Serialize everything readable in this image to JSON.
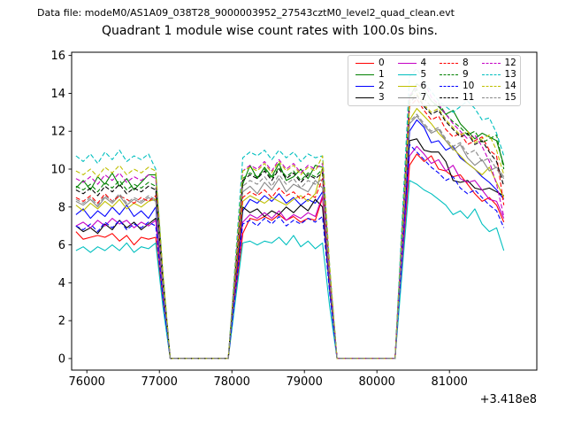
{
  "header": {
    "text": "Data file: modeM0/AS1A09_038T28_9000003952_27543cztM0_level2_quad_clean.evt"
  },
  "chart_data": {
    "type": "line",
    "title": "Quadrant 1 module wise count rates with 100.0s bins.",
    "xlabel": "",
    "ylabel": "",
    "x_offset_label": "+3.418e8",
    "grid": false,
    "legend_position": "upper right",
    "xlim": [
      75790,
      82205
    ],
    "ylim": [
      -0.61,
      16.17
    ],
    "x_ticks": [
      76000,
      77000,
      78000,
      79000,
      80000,
      81000
    ],
    "y_ticks": [
      0,
      2,
      4,
      6,
      8,
      10,
      12,
      14,
      16
    ],
    "x": [
      75850,
      75950,
      76050,
      76150,
      76250,
      76350,
      76450,
      76550,
      76650,
      76750,
      76850,
      76950,
      77050,
      77150,
      77250,
      77350,
      77450,
      77550,
      77650,
      77750,
      77850,
      77950,
      78050,
      78150,
      78250,
      78350,
      78450,
      78550,
      78650,
      78750,
      78850,
      78950,
      79050,
      79150,
      79250,
      79350,
      79450,
      79550,
      79650,
      79750,
      79850,
      79950,
      80050,
      80150,
      80250,
      80350,
      80450,
      80550,
      80650,
      80750,
      80850,
      80950,
      81050,
      81150,
      81250,
      81350,
      81450,
      81550,
      81650,
      81750
    ],
    "series": [
      {
        "name": "0",
        "color": "#ff0000",
        "style": "solid",
        "values": [
          6.7,
          6.3,
          6.4,
          6.5,
          6.4,
          6.6,
          6.2,
          6.5,
          6.0,
          6.4,
          6.3,
          6.4,
          2.9,
          0,
          0,
          0,
          0,
          0,
          0,
          0,
          0,
          0,
          3.3,
          6.6,
          7.4,
          7.3,
          7.5,
          7.3,
          7.6,
          7.3,
          7.5,
          7.2,
          7.4,
          7.3,
          8.5,
          3.8,
          0,
          0,
          0,
          0,
          0,
          0,
          0,
          0,
          0,
          5.1,
          10.2,
          10.8,
          10.4,
          10.7,
          10.0,
          9.9,
          9.6,
          9.7,
          9.2,
          8.7,
          8.3,
          8.5,
          8.1,
          7.2
        ]
      },
      {
        "name": "1",
        "color": "#008000",
        "style": "solid",
        "values": [
          9.0,
          9.4,
          8.9,
          9.6,
          9.2,
          9.8,
          9.1,
          9.5,
          8.9,
          9.3,
          9.7,
          9.7,
          4.4,
          0,
          0,
          0,
          0,
          0,
          0,
          0,
          0,
          0,
          4.6,
          9.2,
          10.2,
          9.5,
          10.1,
          9.6,
          10.3,
          9.4,
          9.6,
          10.0,
          9.5,
          10.2,
          10.1,
          4.5,
          0,
          0,
          0,
          0,
          0,
          0,
          0,
          0,
          0,
          6.9,
          13.8,
          14.5,
          14.2,
          13.6,
          13.3,
          12.9,
          13.1,
          12.4,
          12.0,
          11.6,
          11.9,
          11.7,
          11.5,
          10.2
        ]
      },
      {
        "name": "2",
        "color": "#0000ff",
        "style": "solid",
        "values": [
          7.6,
          7.9,
          7.4,
          7.8,
          7.5,
          8.0,
          7.6,
          8.1,
          7.5,
          7.8,
          7.4,
          8.0,
          3.6,
          0,
          0,
          0,
          0,
          0,
          0,
          0,
          0,
          0,
          3.9,
          7.8,
          8.4,
          8.2,
          8.6,
          8.3,
          8.7,
          8.2,
          8.5,
          8.1,
          8.4,
          8.2,
          8.8,
          4.0,
          0,
          0,
          0,
          0,
          0,
          0,
          0,
          0,
          0,
          6.0,
          12.0,
          12.6,
          12.2,
          11.4,
          11.5,
          11.0,
          11.2,
          10.6,
          10.3,
          10.0,
          9.6,
          9.3,
          8.9,
          8.4
        ]
      },
      {
        "name": "3",
        "color": "#000000",
        "style": "solid",
        "values": [
          7.0,
          6.7,
          6.9,
          6.6,
          7.1,
          6.8,
          7.3,
          6.9,
          7.2,
          6.8,
          7.1,
          7.4,
          3.3,
          0,
          0,
          0,
          0,
          0,
          0,
          0,
          0,
          0,
          4.0,
          8.0,
          7.7,
          7.9,
          7.5,
          7.8,
          7.6,
          8.0,
          7.7,
          8.1,
          7.8,
          8.4,
          8.0,
          3.6,
          0,
          0,
          0,
          0,
          0,
          0,
          0,
          0,
          0,
          5.8,
          11.5,
          11.6,
          11.0,
          10.9,
          10.9,
          10.4,
          9.4,
          9.3,
          9.4,
          9.0,
          8.9,
          9.0,
          8.8,
          8.6
        ]
      },
      {
        "name": "4",
        "color": "#c400c4",
        "style": "solid",
        "values": [
          7.0,
          7.2,
          6.9,
          7.3,
          7.0,
          7.4,
          7.1,
          7.3,
          6.9,
          7.2,
          7.0,
          7.3,
          3.3,
          0,
          0,
          0,
          0,
          0,
          0,
          0,
          0,
          0,
          3.6,
          7.2,
          7.6,
          7.4,
          7.7,
          7.4,
          7.8,
          7.3,
          7.6,
          7.4,
          7.7,
          7.5,
          8.6,
          3.9,
          0,
          0,
          0,
          0,
          0,
          0,
          0,
          0,
          0,
          5.4,
          10.7,
          11.2,
          10.8,
          10.3,
          10.5,
          9.9,
          10.2,
          9.5,
          9.3,
          9.4,
          8.9,
          8.4,
          8.3,
          7.4
        ]
      },
      {
        "name": "5",
        "color": "#00bfbf",
        "style": "solid",
        "values": [
          5.7,
          5.9,
          5.6,
          5.9,
          5.7,
          6.0,
          5.7,
          6.1,
          5.6,
          5.9,
          5.8,
          6.1,
          2.7,
          0,
          0,
          0,
          0,
          0,
          0,
          0,
          0,
          0,
          3.1,
          6.1,
          6.2,
          6.0,
          6.2,
          6.1,
          6.4,
          6.0,
          6.5,
          5.9,
          6.2,
          5.8,
          6.1,
          2.7,
          0,
          0,
          0,
          0,
          0,
          0,
          0,
          0,
          0,
          4.7,
          9.4,
          9.2,
          8.9,
          8.7,
          8.4,
          8.1,
          7.6,
          7.8,
          7.4,
          7.9,
          7.1,
          6.7,
          6.9,
          5.7
        ]
      },
      {
        "name": "6",
        "color": "#bfbf00",
        "style": "solid",
        "values": [
          8.1,
          7.8,
          8.2,
          7.9,
          8.3,
          8.0,
          8.4,
          7.9,
          8.2,
          8.0,
          8.3,
          8.4,
          3.8,
          0,
          0,
          0,
          0,
          0,
          0,
          0,
          0,
          0,
          4.2,
          8.3,
          8.6,
          8.4,
          8.2,
          8.5,
          8.3,
          8.1,
          8.4,
          8.6,
          8.3,
          8.7,
          10.1,
          4.5,
          0,
          0,
          0,
          0,
          0,
          0,
          0,
          0,
          0,
          6.3,
          12.6,
          13.2,
          12.8,
          12.4,
          11.9,
          11.5,
          11.1,
          10.7,
          10.3,
          10.0,
          9.7,
          10.1,
          9.3,
          8.5
        ]
      },
      {
        "name": "7",
        "color": "#888888",
        "style": "solid",
        "values": [
          8.3,
          8.1,
          8.4,
          8.0,
          8.5,
          8.2,
          8.6,
          8.1,
          8.4,
          8.2,
          8.5,
          8.3,
          3.7,
          0,
          0,
          0,
          0,
          0,
          0,
          0,
          0,
          0,
          4.4,
          8.8,
          9.1,
          8.7,
          9.3,
          8.9,
          9.5,
          8.8,
          9.2,
          9.0,
          8.8,
          9.4,
          9.0,
          4.1,
          0,
          0,
          0,
          0,
          0,
          0,
          0,
          0,
          0,
          6.2,
          12.4,
          12.8,
          12.3,
          11.9,
          12.1,
          11.5,
          11.0,
          11.3,
          10.6,
          10.2,
          10.5,
          9.9,
          10.1,
          9.6
        ]
      },
      {
        "name": "8",
        "color": "#ff0000",
        "style": "dashed",
        "values": [
          8.5,
          8.3,
          8.6,
          8.2,
          8.7,
          8.3,
          8.6,
          8.4,
          8.2,
          8.5,
          8.3,
          8.6,
          3.9,
          0,
          0,
          0,
          0,
          0,
          0,
          0,
          0,
          0,
          4.3,
          8.5,
          8.8,
          8.6,
          8.9,
          8.5,
          9.0,
          8.6,
          8.8,
          8.4,
          8.7,
          8.5,
          9.5,
          4.3,
          0,
          0,
          0,
          0,
          0,
          0,
          0,
          0,
          0,
          6.7,
          13.3,
          13.7,
          13.1,
          12.6,
          12.8,
          12.1,
          11.7,
          11.9,
          11.3,
          11.5,
          11.7,
          11.0,
          10.7,
          8.1
        ]
      },
      {
        "name": "9",
        "color": "#008000",
        "style": "dashed",
        "values": [
          9.1,
          8.9,
          9.2,
          8.8,
          9.3,
          9.0,
          9.4,
          8.9,
          9.2,
          9.0,
          9.3,
          9.1,
          4.1,
          0,
          0,
          0,
          0,
          0,
          0,
          0,
          0,
          0,
          4.8,
          9.5,
          9.8,
          9.6,
          10.0,
          9.5,
          10.1,
          9.6,
          9.9,
          9.4,
          9.8,
          9.6,
          10.0,
          4.5,
          0,
          0,
          0,
          0,
          0,
          0,
          0,
          0,
          0,
          6.9,
          13.8,
          14.2,
          13.7,
          13.3,
          13.5,
          12.9,
          12.5,
          12.2,
          11.8,
          12.0,
          11.4,
          11.6,
          11.8,
          10.0
        ]
      },
      {
        "name": "10",
        "color": "#0000ff",
        "style": "dashed",
        "values": [
          7.0,
          6.8,
          7.1,
          6.7,
          7.2,
          6.9,
          7.3,
          6.8,
          7.1,
          6.9,
          7.2,
          7.0,
          3.2,
          0,
          0,
          0,
          0,
          0,
          0,
          0,
          0,
          0,
          3.6,
          7.1,
          7.3,
          7.0,
          7.4,
          7.1,
          7.5,
          7.0,
          7.3,
          7.1,
          7.4,
          7.2,
          7.5,
          3.4,
          0,
          0,
          0,
          0,
          0,
          0,
          0,
          0,
          0,
          5.7,
          11.3,
          10.9,
          10.5,
          10.1,
          9.8,
          9.4,
          9.6,
          9.0,
          8.7,
          8.9,
          8.5,
          8.1,
          7.8,
          6.9
        ]
      },
      {
        "name": "11",
        "color": "#000000",
        "style": "dashed",
        "values": [
          8.9,
          8.7,
          9.0,
          8.6,
          9.1,
          8.8,
          9.2,
          8.7,
          9.0,
          8.8,
          9.1,
          8.9,
          4.0,
          0,
          0,
          0,
          0,
          0,
          0,
          0,
          0,
          0,
          4.7,
          9.4,
          9.7,
          9.5,
          9.9,
          9.4,
          10.0,
          9.5,
          9.8,
          9.3,
          9.7,
          9.5,
          9.8,
          4.4,
          0,
          0,
          0,
          0,
          0,
          0,
          0,
          0,
          0,
          6.8,
          13.5,
          13.9,
          13.3,
          12.9,
          13.1,
          12.5,
          12.1,
          11.7,
          11.9,
          11.3,
          11.5,
          10.9,
          10.4,
          9.1
        ]
      },
      {
        "name": "12",
        "color": "#c400c4",
        "style": "dashed",
        "values": [
          9.5,
          9.3,
          9.6,
          9.2,
          9.7,
          9.4,
          9.8,
          9.3,
          9.6,
          9.4,
          9.7,
          9.5,
          4.3,
          0,
          0,
          0,
          0,
          0,
          0,
          0,
          0,
          0,
          5.0,
          9.9,
          10.2,
          10.0,
          10.4,
          9.9,
          10.5,
          10.0,
          10.3,
          9.8,
          10.2,
          10.0,
          10.3,
          4.6,
          0,
          0,
          0,
          0,
          0,
          0,
          0,
          0,
          0,
          7.0,
          13.9,
          14.3,
          14.6,
          13.8,
          13.4,
          12.9,
          12.4,
          12.0,
          11.6,
          11.8,
          11.2,
          10.4,
          9.2,
          7.5
        ]
      },
      {
        "name": "13",
        "color": "#00bfbf",
        "style": "dashed",
        "values": [
          10.7,
          10.4,
          10.8,
          10.3,
          10.9,
          10.5,
          11.0,
          10.4,
          10.7,
          10.5,
          10.8,
          10.0,
          4.5,
          0,
          0,
          0,
          0,
          0,
          0,
          0,
          0,
          0,
          5.3,
          10.6,
          10.9,
          10.7,
          11.0,
          10.5,
          11.0,
          10.6,
          10.9,
          10.4,
          10.8,
          10.6,
          10.7,
          4.8,
          0,
          0,
          0,
          0,
          0,
          0,
          0,
          0,
          0,
          7.5,
          14.9,
          15.3,
          14.6,
          14.1,
          13.6,
          13.3,
          13.0,
          13.3,
          13.6,
          13.2,
          12.6,
          12.7,
          11.9,
          10.7
        ]
      },
      {
        "name": "14",
        "color": "#bfbf00",
        "style": "dashed",
        "values": [
          9.9,
          9.7,
          10.0,
          9.6,
          10.1,
          9.8,
          10.2,
          9.7,
          10.0,
          9.8,
          10.1,
          9.9,
          4.5,
          0,
          0,
          0,
          0,
          0,
          0,
          0,
          0,
          0,
          5.0,
          9.9,
          10.1,
          9.9,
          10.3,
          9.8,
          10.4,
          9.9,
          10.2,
          9.7,
          10.1,
          9.9,
          10.7,
          4.8,
          0,
          0,
          0,
          0,
          0,
          0,
          0,
          0,
          0,
          6.8,
          13.6,
          14.0,
          13.4,
          13.0,
          13.2,
          12.6,
          12.2,
          11.8,
          12.0,
          11.4,
          11.6,
          11.8,
          11.0,
          9.7
        ]
      },
      {
        "name": "15",
        "color": "#888888",
        "style": "dashed",
        "values": [
          8.4,
          8.2,
          8.5,
          8.1,
          8.6,
          8.3,
          8.7,
          8.2,
          8.5,
          8.3,
          8.6,
          8.4,
          3.8,
          0,
          0,
          0,
          0,
          0,
          0,
          0,
          0,
          0,
          4.6,
          9.1,
          9.4,
          9.2,
          9.6,
          9.1,
          9.7,
          9.2,
          9.5,
          9.0,
          9.4,
          9.2,
          9.5,
          4.3,
          0,
          0,
          0,
          0,
          0,
          0,
          0,
          0,
          0,
          6.3,
          12.5,
          12.9,
          12.4,
          12.0,
          12.2,
          11.6,
          11.2,
          11.4,
          10.8,
          11.0,
          10.4,
          10.6,
          10.0,
          9.5
        ]
      }
    ]
  }
}
